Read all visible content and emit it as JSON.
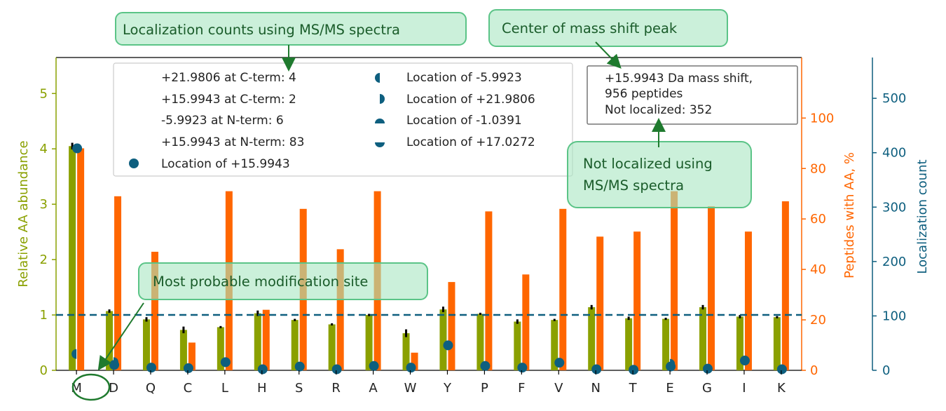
{
  "chart_data": {
    "type": "bar",
    "categories": [
      "M",
      "D",
      "Q",
      "C",
      "L",
      "H",
      "S",
      "R",
      "A",
      "W",
      "Y",
      "P",
      "F",
      "V",
      "N",
      "T",
      "E",
      "G",
      "I",
      "K"
    ],
    "axes": {
      "left": {
        "label": "Relative AA abundance",
        "ylim": [
          0,
          5.65
        ],
        "ticks": [
          0,
          1,
          2,
          3,
          4,
          5
        ],
        "color": "#8aa000"
      },
      "right1": {
        "label": "Peptides with AA, %",
        "ylim": [
          0,
          124
        ],
        "ticks": [
          0,
          20,
          40,
          60,
          80,
          100
        ],
        "color": "#ff6600"
      },
      "right2": {
        "label": "Localization count",
        "ylim": [
          0,
          575
        ],
        "ticks": [
          0,
          100,
          200,
          300,
          400,
          500
        ],
        "color": "#0e5f7f"
      }
    },
    "series": [
      {
        "axis": "left",
        "color": "#8aa000",
        "values": [
          4.05,
          1.07,
          0.92,
          0.73,
          0.78,
          1.03,
          0.91,
          0.83,
          1.0,
          0.67,
          1.1,
          1.02,
          0.88,
          0.91,
          1.14,
          0.94,
          0.93,
          1.14,
          0.97,
          0.96
        ],
        "errors": [
          0.06,
          0.03,
          0.04,
          0.06,
          0.02,
          0.05,
          0.02,
          0.02,
          0.02,
          0.07,
          0.05,
          0.02,
          0.04,
          0.02,
          0.04,
          0.03,
          0.02,
          0.04,
          0.03,
          0.02
        ]
      },
      {
        "axis": "right1",
        "color": "#ff6600",
        "values": [
          88.0,
          69.0,
          47.0,
          11.0,
          71.0,
          24.0,
          64.0,
          48.0,
          71.0,
          7.0,
          35.0,
          63.0,
          38.0,
          64.0,
          53.0,
          55.0,
          71.0,
          65.0,
          55.0,
          67.0
        ]
      },
      {
        "axis": "right2",
        "color": "#0e5f7f",
        "marker": "circle",
        "values": [
          408,
          10,
          5,
          4,
          15,
          2,
          7,
          2,
          8,
          5,
          46,
          8,
          5,
          14,
          2,
          1,
          7,
          3,
          18,
          2
        ]
      },
      {
        "axis": "right2",
        "color": "#0e5f7f",
        "marker": "half-circle-left",
        "values": [
          30,
          0,
          0,
          0,
          0,
          0,
          0,
          0,
          0,
          0,
          0,
          0,
          0,
          0,
          0,
          0,
          0,
          0,
          0,
          0
        ]
      },
      {
        "axis": "right2",
        "color": "#0e5f7f",
        "marker": "half-circle-right",
        "values": [
          0,
          15,
          0,
          0,
          0,
          0,
          0,
          0,
          0,
          0,
          0,
          0,
          0,
          0,
          0,
          0,
          12,
          0,
          0,
          0
        ]
      }
    ],
    "reference_line": {
      "axis": "left",
      "value": 1.0,
      "style": "dashed",
      "color": "#0e5f7f"
    },
    "legend": {
      "placement": "top-left",
      "items": [
        "+21.9806 at C-term: 4",
        "+15.9943 at C-term: 2",
        "-5.9923 at N-term: 6",
        "+15.9943 at N-term: 83",
        "Location of +15.9943",
        "Location of -5.9923",
        "Location of +21.9806",
        "Location of -1.0391",
        "Location of +17.0272"
      ]
    },
    "info_box": {
      "lines": [
        "+15.9943 Da mass shift,",
        "956 peptides",
        "Not localized: 352"
      ]
    },
    "annotations": [
      "Localization counts using MS/MS spectra",
      "Center of mass shift peak",
      "Not localized using",
      " MS/MS spectra",
      "Most probable modification site"
    ]
  }
}
